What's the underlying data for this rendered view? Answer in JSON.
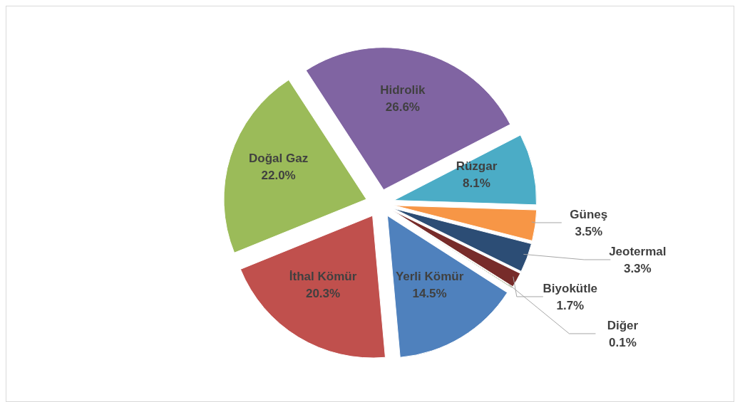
{
  "chart_data": {
    "type": "pie",
    "categories": [
      "Hidrolik",
      "Rüzgar",
      "Güneş",
      "Jeotermal",
      "Biyokütle",
      "Diğer",
      "Yerli Kömür",
      "İthal Kömür",
      "Doğal Gaz"
    ],
    "values": [
      26.6,
      8.1,
      3.5,
      3.3,
      1.7,
      0.1,
      14.5,
      20.3,
      22.0
    ],
    "value_labels": [
      "26.6%",
      "8.1%",
      "3.5%",
      "3.3%",
      "1.7%",
      "0.1%",
      "14.5%",
      "20.3%",
      "22.0%"
    ],
    "colors": [
      "#8064a2",
      "#4bacc6",
      "#f79646",
      "#2c4d75",
      "#772c2a",
      "#5f7530",
      "#4f81bd",
      "#c0504d",
      "#9bbb59"
    ],
    "legend": false
  }
}
